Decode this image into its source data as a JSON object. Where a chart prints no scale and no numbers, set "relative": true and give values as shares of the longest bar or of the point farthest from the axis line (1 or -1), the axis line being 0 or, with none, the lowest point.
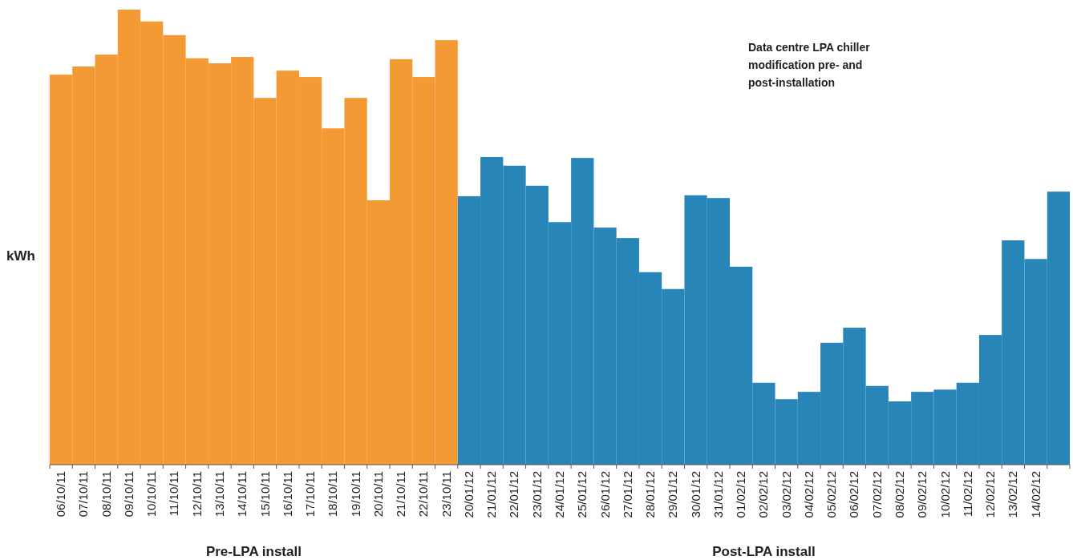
{
  "chart_data": {
    "type": "bar",
    "title": "Data centre LPA chiller modification pre- and post-installation",
    "ylabel": "kWh",
    "relative": true,
    "categories": [
      "06/10/11",
      "07/10/11",
      "08/10/11",
      "09/10/11",
      "10/10/11",
      "11/10/11",
      "12/10/11",
      "13/10/11",
      "14/10/11",
      "15/10/11",
      "16/10/11",
      "17/10/11",
      "18/10/11",
      "19/10/11",
      "20/10/11",
      "21/10/11",
      "22/10/11",
      "23/10/11",
      "20/01/12",
      "21/01/12",
      "22/01/12",
      "23/01/12",
      "24/01/12",
      "25/01/12",
      "26/01/12",
      "27/01/12",
      "28/01/12",
      "29/01/12",
      "30/01/12",
      "31/01/12",
      "01/02/12",
      "02/02/12",
      "03/02/12",
      "04/02/12",
      "05/02/12",
      "06/02/12",
      "07/02/12",
      "08/02/12",
      "09/02/12",
      "10/02/12",
      "11/02/12",
      "12/02/12",
      "13/02/12",
      "14/02/12",
      null
    ],
    "values": [
      0.857,
      0.875,
      0.901,
      1,
      0.974,
      0.944,
      0.893,
      0.882,
      0.896,
      0.806,
      0.866,
      0.852,
      0.739,
      0.806,
      0.581,
      0.891,
      0.852,
      0.933,
      0.59,
      0.676,
      0.657,
      0.613,
      0.533,
      0.674,
      0.521,
      0.498,
      0.423,
      0.386,
      0.592,
      0.586,
      0.435,
      0.18,
      0.144,
      0.16,
      0.268,
      0.301,
      0.173,
      0.139,
      0.16,
      0.165,
      0.18,
      0.285,
      0.493,
      0.452,
      0.6
    ],
    "colors": [
      "#f39a35",
      "#f39a35",
      "#f39a35",
      "#f39a35",
      "#f39a35",
      "#f39a35",
      "#f39a35",
      "#f39a35",
      "#f39a35",
      "#f39a35",
      "#f39a35",
      "#f39a35",
      "#f39a35",
      "#f39a35",
      "#f39a35",
      "#f39a35",
      "#f39a35",
      "#f39a35",
      "#2785b8",
      "#2785b8",
      "#2785b8",
      "#2785b8",
      "#2785b8",
      "#2785b8",
      "#2785b8",
      "#2785b8",
      "#2785b8",
      "#2785b8",
      "#2785b8",
      "#2785b8",
      "#2785b8",
      "#2785b8",
      "#2785b8",
      "#2785b8",
      "#2785b8",
      "#2785b8",
      "#2785b8",
      "#2785b8",
      "#2785b8",
      "#2785b8",
      "#2785b8",
      "#2785b8",
      "#2785b8",
      "#2785b8",
      "#2785b8"
    ],
    "annotations": [
      "Pre-LPA install",
      "Post-LPA install"
    ]
  }
}
